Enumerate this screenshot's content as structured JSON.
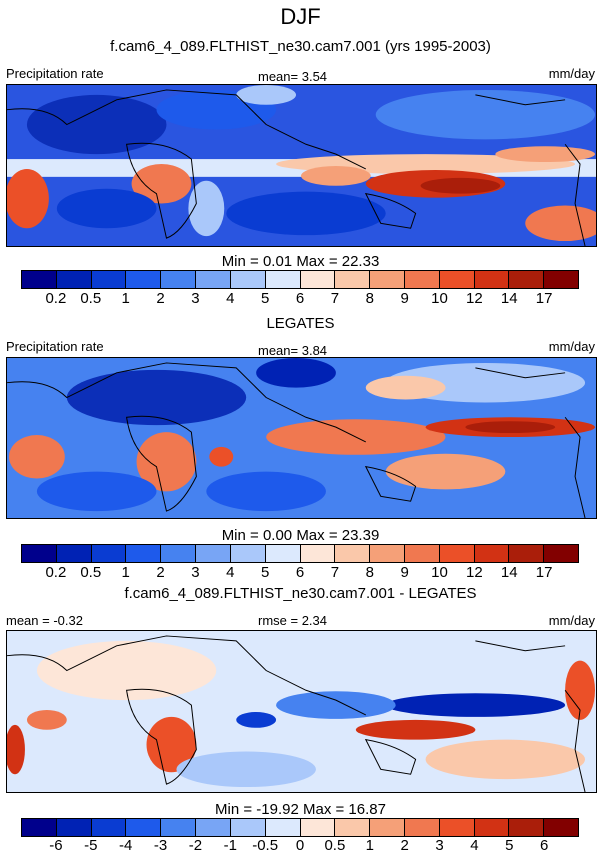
{
  "season": "DJF",
  "panels": [
    {
      "title": "f.cam6_4_089.FLTHIST_ne30.cam7.001 (yrs 1995-2003)",
      "left_label": "Precipitation rate",
      "center_label": "mean=   3.54",
      "right_label": "mm/day",
      "minmax": "Min =   0.01 Max =  22.33"
    },
    {
      "title": "LEGATES",
      "left_label": "Precipitation rate",
      "center_label": "mean=   3.84",
      "right_label": "mm/day",
      "minmax": "Min =   0.00 Max =  23.39"
    },
    {
      "title": "f.cam6_4_089.FLTHIST_ne30.cam7.001 - LEGATES",
      "left_label": "mean =  -0.32",
      "center_label": "rmse =   2.34",
      "right_label": "mm/day",
      "minmax": "Min = -19.92 Max =  16.87"
    }
  ],
  "colorbar": {
    "colors": [
      "#00008c",
      "#0022b4",
      "#0a3cd2",
      "#1e5aeb",
      "#4682f0",
      "#78a5f5",
      "#aac8fa",
      "#dce9fd",
      "#fde6d8",
      "#fac8aa",
      "#f5a078",
      "#f07850",
      "#eb5028",
      "#d23214",
      "#aa1e0a",
      "#820000"
    ],
    "levels_precip": [
      "0.2",
      "0.5",
      "1",
      "2",
      "3",
      "4",
      "5",
      "6",
      "7",
      "8",
      "9",
      "10",
      "12",
      "14",
      "17"
    ],
    "levels_diff": [
      "-6",
      "-5",
      "-4",
      "-3",
      "-2",
      "-1",
      "-0.5",
      "0",
      "0.5",
      "1",
      "2",
      "3",
      "4",
      "5",
      "6"
    ]
  }
}
